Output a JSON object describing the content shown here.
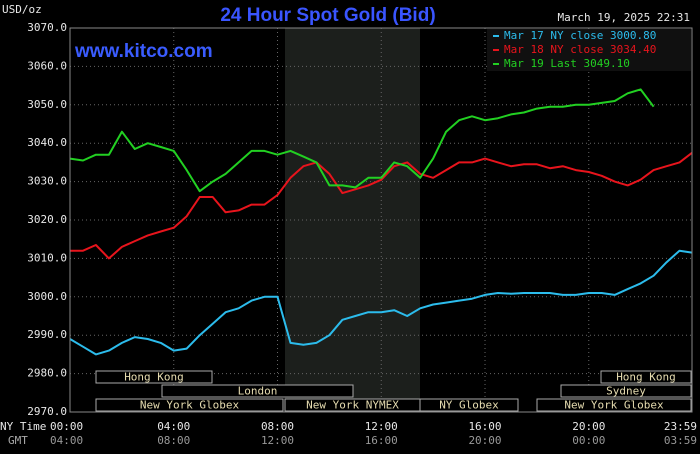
{
  "chart_data": {
    "type": "line",
    "title": "24 Hour Spot Gold (Bid)",
    "subtitle": "www.kitco.com",
    "timestamp": "March 19, 2025 22:31",
    "ylabel": "USD/oz",
    "xlabel": "NY Time",
    "x2label": "GMT",
    "x": [
      0,
      0.5,
      1,
      1.5,
      2,
      2.5,
      3,
      3.5,
      4,
      4.5,
      5,
      5.5,
      6,
      6.5,
      7,
      7.5,
      8,
      8.5,
      9,
      9.5,
      10,
      10.5,
      11,
      11.5,
      12,
      12.5,
      13,
      13.5,
      14,
      14.5,
      15,
      15.5,
      16,
      16.5,
      17,
      17.5,
      18,
      18.5,
      19,
      19.5,
      20,
      20.5,
      21,
      21.5,
      22,
      22.5,
      23,
      23.5,
      23.98
    ],
    "xlim": [
      0,
      23.98
    ],
    "xticks": [
      {
        "value": 0,
        "label": "00:00"
      },
      {
        "value": 4,
        "label": "04:00"
      },
      {
        "value": 8,
        "label": "08:00"
      },
      {
        "value": 12,
        "label": "12:00"
      },
      {
        "value": 16,
        "label": "16:00"
      },
      {
        "value": 20,
        "label": "20:00"
      },
      {
        "value": 23.98,
        "label": "23:59"
      }
    ],
    "x2ticklabels": [
      "04:00",
      "08:00",
      "12:00",
      "16:00",
      "20:00",
      "00:00",
      "03:59"
    ],
    "ylim": [
      2970,
      3070
    ],
    "yticks": [
      {
        "value": 2970,
        "label": "2970.0"
      },
      {
        "value": 2980,
        "label": "2980.0"
      },
      {
        "value": 2990,
        "label": "2990.0"
      },
      {
        "value": 3000,
        "label": "3000.0"
      },
      {
        "value": 3010,
        "label": "3010.0"
      },
      {
        "value": 3020,
        "label": "3020.0"
      },
      {
        "value": 3030,
        "label": "3030.0"
      },
      {
        "value": 3040,
        "label": "3040.0"
      },
      {
        "value": 3050,
        "label": "3050.0"
      },
      {
        "value": 3060,
        "label": "3060.0"
      },
      {
        "value": 3070,
        "label": "3070.0"
      }
    ],
    "grid": true,
    "legend": "top-right",
    "sessions": [
      "Hong Kong",
      "London",
      "New York Globex",
      "New York NYMEX",
      "NY Globex",
      "Sydney",
      "Hong Kong",
      "New York Globex"
    ],
    "series": [
      {
        "name": "Mar 17 NY close 3000.80",
        "color": "#2cbcec",
        "values": [
          2989,
          2987,
          2985,
          2986,
          2988,
          2989.5,
          2989,
          2988,
          2986,
          2986.5,
          2990,
          2993,
          2996,
          2997,
          2999,
          3000,
          3000,
          2988,
          2987.5,
          2988,
          2990,
          2994,
          2995,
          2996,
          2996,
          2996.5,
          2995,
          2997,
          2998,
          2998.5,
          2999,
          2999.5,
          3000.5,
          3001,
          3000.8,
          3001,
          3001,
          3001,
          3000.5,
          3000.5,
          3001,
          3001,
          3000.5,
          3002,
          3003.5,
          3005.5,
          3009,
          3012,
          3011.5
        ]
      },
      {
        "name": "Mar 18 NY close 3034.40",
        "color": "#e8141c",
        "values": [
          3012,
          3012,
          3013.5,
          3010,
          3013,
          3014.5,
          3016,
          3017,
          3018,
          3021,
          3026,
          3026,
          3022,
          3022.5,
          3024,
          3024,
          3026.5,
          3031,
          3034,
          3035,
          3032,
          3027,
          3028,
          3029,
          3030.5,
          3034,
          3035,
          3032,
          3031,
          3033,
          3035,
          3035,
          3036,
          3035,
          3034,
          3034.5,
          3034.5,
          3033.5,
          3034,
          3033,
          3032.5,
          3031.5,
          3030,
          3029,
          3030.5,
          3033,
          3034,
          3035,
          3037.5
        ]
      },
      {
        "name": "Mar 19 Last 3049.10",
        "color": "#22d022",
        "values": [
          3036,
          3035.5,
          3037,
          3037,
          3043,
          3038.5,
          3040,
          3039,
          3038,
          3033,
          3027.5,
          3030,
          3032,
          3035,
          3038,
          3038,
          3037,
          3038,
          3036.5,
          3035,
          3029,
          3029,
          3028.5,
          3031,
          3031,
          3035,
          3034,
          3031,
          3036,
          3043,
          3046,
          3047,
          3046,
          3046.5,
          3047.5,
          3048,
          3049,
          3049.5,
          3049.5,
          3050,
          3050,
          3050.5,
          3051,
          3053,
          3054,
          3049.5,
          null,
          null,
          null
        ]
      }
    ]
  }
}
